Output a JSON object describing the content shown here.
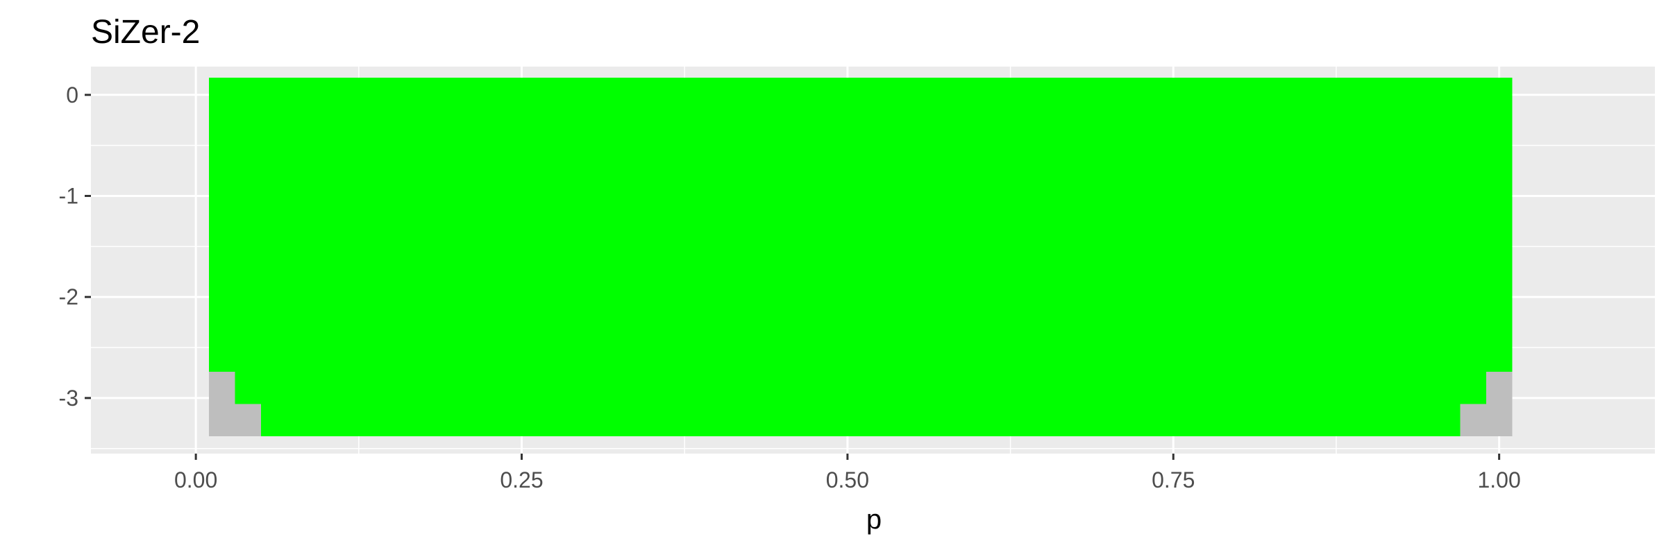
{
  "chart_data": {
    "type": "heatmap",
    "title": "SiZer-2",
    "xlabel": "p",
    "ylabel": "",
    "xlim": [
      -0.0805,
      1.1195
    ],
    "ylim": [
      -3.55,
      0.28
    ],
    "grid": true,
    "legend": "none",
    "colors": {
      "panel": "#ebebeb",
      "grid_major": "#ffffff",
      "significant": "#00ff00",
      "not_significant": "#bebebe"
    },
    "x_ticks": [
      {
        "value": 0.0,
        "label": "0.00"
      },
      {
        "value": 0.25,
        "label": "0.25"
      },
      {
        "value": 0.5,
        "label": "0.50"
      },
      {
        "value": 0.75,
        "label": "0.75"
      },
      {
        "value": 1.0,
        "label": "1.00"
      }
    ],
    "y_ticks": [
      {
        "value": 0,
        "label": "0"
      },
      {
        "value": -1,
        "label": "-1"
      },
      {
        "value": -2,
        "label": "-2"
      },
      {
        "value": -3,
        "label": "-3"
      }
    ],
    "x_minor": [
      0.125,
      0.375,
      0.625,
      0.875
    ],
    "y_minor": [
      -0.5,
      -1.5,
      -2.5,
      -3.5
    ],
    "regions": [
      {
        "name": "significant",
        "status": "significant",
        "x": [
          0.01,
          1.01
        ],
        "y": [
          -3.38,
          0.17
        ]
      },
      {
        "name": "low-left-1",
        "status": "not_significant",
        "x": [
          0.01,
          0.03
        ],
        "y": [
          -3.38,
          -2.74
        ]
      },
      {
        "name": "low-left-2",
        "status": "not_significant",
        "x": [
          0.03,
          0.05
        ],
        "y": [
          -3.38,
          -3.06
        ]
      },
      {
        "name": "low-right-1",
        "status": "not_significant",
        "x": [
          0.97,
          0.99
        ],
        "y": [
          -3.38,
          -3.06
        ]
      },
      {
        "name": "low-right-2",
        "status": "not_significant",
        "x": [
          0.99,
          1.01
        ],
        "y": [
          -3.38,
          -2.74
        ]
      }
    ]
  }
}
